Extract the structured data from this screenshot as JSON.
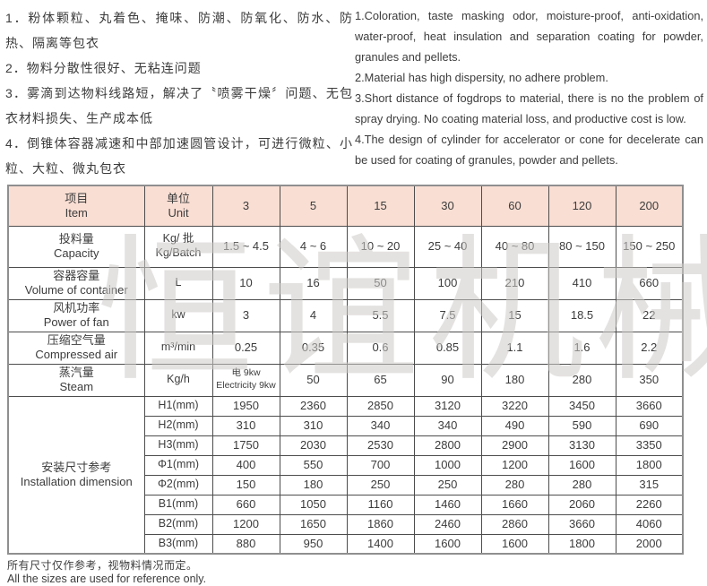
{
  "intro": {
    "zh_items": [
      "1．粉体颗粒、丸着色、掩味、防潮、防氧化、防水、防热、隔离等包衣",
      "2．物料分散性很好、无粘连问题",
      "3．雾滴到达物料线路短，解决了〝喷雾干燥〞问题、无包衣材料损失、生产成本低",
      "4．倒锥体容器减速和中部加速圆管设计，可进行微粒、小粒、大粒、微丸包衣"
    ],
    "en_items": [
      "1.Coloration, taste masking odor, moisture-proof, anti-oxidation, water-proof, heat insulation and separation coating for powder, granules and pellets.",
      "2.Material has high dispersity, no adhere problem.",
      "3.Short distance of fogdrops to material, there is no the problem of spray drying. No coating material loss, and productive cost is low.",
      "4.The design of cylinder for accelerator or cone for decelerate can be used for coating of granules, powder and pellets."
    ]
  },
  "table": {
    "header": {
      "item": "项目\nItem",
      "unit": "单位\nUnit",
      "models": [
        "3",
        "5",
        "15",
        "30",
        "60",
        "120",
        "200"
      ]
    },
    "spec_rows": [
      {
        "label": "投料量\nCapacity",
        "unit": "Kg/ 批\nKg/Batch",
        "values": [
          "1.5 ~ 4.5",
          "4 ~ 6",
          "10 ~ 20",
          "25 ~ 40",
          "40 ~ 80",
          "80 ~ 150",
          "150 ~ 250"
        ]
      },
      {
        "label": "容器容量\nVolume of container",
        "unit": "L",
        "values": [
          "10",
          "16",
          "50",
          "100",
          "210",
          "410",
          "660"
        ]
      },
      {
        "label": "风机功率\nPower of fan",
        "unit": "kw",
        "values": [
          "3",
          "4",
          "5.5",
          "7.5",
          "15",
          "18.5",
          "22"
        ]
      },
      {
        "label": "压缩空气量\nCompressed air",
        "unit": "m³/min",
        "values": [
          "0.25",
          "0.35",
          "0.6",
          "0.85",
          "1.1",
          "1.6",
          "2.2"
        ]
      },
      {
        "label": "蒸汽量\nSteam",
        "unit": "Kg/h",
        "values": [
          "电 9kw\nElectricity 9kw",
          "50",
          "65",
          "90",
          "180",
          "280",
          "350"
        ]
      }
    ],
    "install": {
      "label": "安装尺寸参考\nInstallation dimension",
      "rows": [
        {
          "param": "H1(mm)",
          "values": [
            "1950",
            "2360",
            "2850",
            "3120",
            "3220",
            "3450",
            "3660"
          ]
        },
        {
          "param": "H2(mm)",
          "values": [
            "310",
            "310",
            "340",
            "340",
            "490",
            "590",
            "690"
          ]
        },
        {
          "param": "H3(mm)",
          "values": [
            "1750",
            "2030",
            "2530",
            "2800",
            "2900",
            "3130",
            "3350"
          ]
        },
        {
          "param": "Φ1(mm)",
          "values": [
            "400",
            "550",
            "700",
            "1000",
            "1200",
            "1600",
            "1800"
          ]
        },
        {
          "param": "Φ2(mm)",
          "values": [
            "150",
            "180",
            "250",
            "250",
            "280",
            "280",
            "315"
          ]
        },
        {
          "param": "B1(mm)",
          "values": [
            "660",
            "1050",
            "1160",
            "1460",
            "1660",
            "2060",
            "2260"
          ]
        },
        {
          "param": "B2(mm)",
          "values": [
            "1200",
            "1650",
            "1860",
            "2460",
            "2860",
            "3660",
            "4060"
          ]
        },
        {
          "param": "B3(mm)",
          "values": [
            "880",
            "950",
            "1400",
            "1600",
            "1600",
            "1800",
            "2000"
          ]
        }
      ]
    }
  },
  "watermark": "恒谊机械",
  "footer": {
    "zh": "所有尺寸仅作参考，视物料情况而定。",
    "en": "All the sizes are used for reference only."
  }
}
